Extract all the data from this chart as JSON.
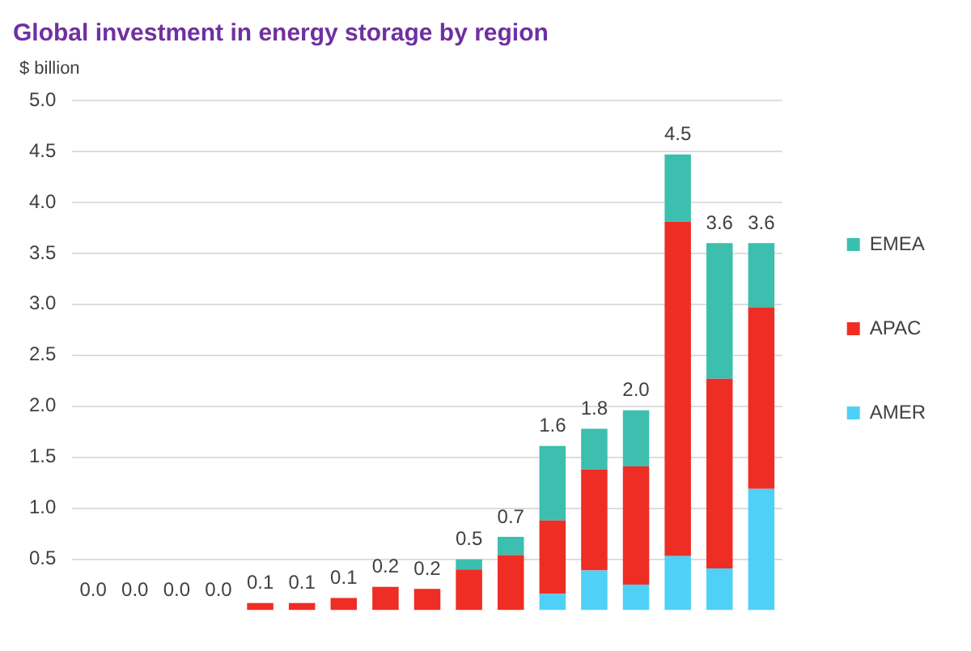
{
  "chart_data": {
    "type": "bar",
    "title": "Global investment in energy storage by region",
    "ylabel": "$ billion",
    "stacked": true,
    "categories": [
      null,
      null,
      null,
      null,
      null,
      null,
      null,
      null,
      null,
      null,
      null,
      null,
      null,
      null,
      null,
      null,
      null
    ],
    "series": [
      {
        "name": "AMER",
        "color": "#4fd0f7",
        "values": [
          0,
          0,
          0,
          0,
          0,
          0,
          0,
          0,
          0,
          0,
          0,
          0.16,
          0.39,
          0.25,
          0.53,
          0.41,
          1.19
        ]
      },
      {
        "name": "APAC",
        "color": "#ee2e24",
        "values": [
          0,
          0,
          0,
          0,
          0.07,
          0.07,
          0.12,
          0.23,
          0.21,
          0.4,
          0.54,
          0.72,
          0.99,
          1.16,
          3.28,
          1.86,
          1.78
        ]
      },
      {
        "name": "EMEA",
        "color": "#3cbfae",
        "values": [
          0,
          0,
          0,
          0,
          0,
          0,
          0,
          0,
          0,
          0.1,
          0.18,
          0.73,
          0.4,
          0.55,
          0.66,
          1.33,
          0.63
        ]
      }
    ],
    "totals": [
      "0.0",
      "0.0",
      "0.0",
      "0.0",
      "0.1",
      "0.1",
      "0.1",
      "0.2",
      "0.2",
      "0.5",
      "0.7",
      "1.6",
      "1.8",
      "2.0",
      "4.5",
      "3.6",
      "3.6"
    ],
    "ylim": [
      0,
      5
    ],
    "yticks": [
      0.5,
      {
        "value": 1,
        "label": "1.0"
      },
      1.5,
      {
        "value": 2,
        "label": "2.0"
      },
      2.5,
      {
        "value": 3,
        "label": "3.0"
      },
      3.5,
      {
        "value": 4,
        "label": "4.0"
      },
      4.5,
      {
        "value": 5,
        "label": "5.0"
      }
    ],
    "grid": "y",
    "legend": "right"
  }
}
